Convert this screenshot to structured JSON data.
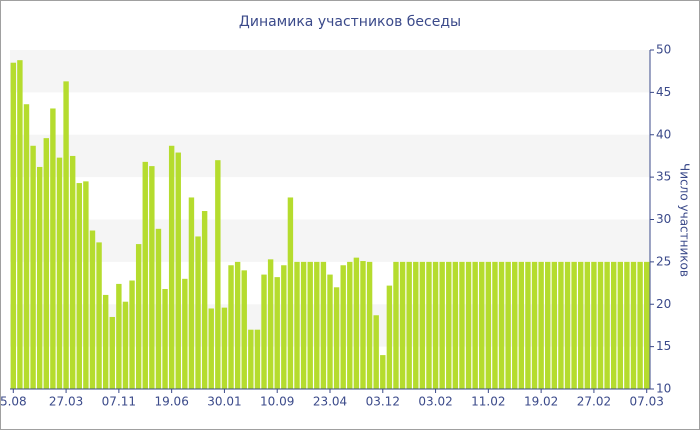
{
  "chart_data": {
    "type": "bar",
    "title": "Динамика участников беседы",
    "y_axis_label": "Число участников",
    "categories": [
      "5.08",
      null,
      null,
      null,
      null,
      null,
      null,
      null,
      "27.03",
      null,
      null,
      null,
      null,
      null,
      null,
      null,
      "07.11",
      null,
      null,
      null,
      null,
      null,
      null,
      null,
      "19.06",
      null,
      null,
      null,
      null,
      null,
      null,
      null,
      "30.01",
      null,
      null,
      null,
      null,
      null,
      null,
      null,
      "10.09",
      null,
      null,
      null,
      null,
      null,
      null,
      null,
      "23.04",
      null,
      null,
      null,
      null,
      null,
      null,
      null,
      "03.12",
      null,
      null,
      null,
      null,
      null,
      null,
      null,
      "03.02",
      null,
      null,
      null,
      null,
      null,
      null,
      null,
      "11.02",
      null,
      null,
      null,
      null,
      null,
      null,
      null,
      "19.02",
      null,
      null,
      null,
      null,
      null,
      null,
      null,
      "27.02",
      null,
      null,
      null,
      null,
      null,
      null,
      null,
      "07.03"
    ],
    "values": [
      48.5,
      48.8,
      43.6,
      38.7,
      36.2,
      39.6,
      43.1,
      37.3,
      46.3,
      37.5,
      34.3,
      34.5,
      28.7,
      27.3,
      21.1,
      18.5,
      22.4,
      20.3,
      22.8,
      27.1,
      36.8,
      36.3,
      28.9,
      21.8,
      38.7,
      37.9,
      23.0,
      32.6,
      28.0,
      31.0,
      19.5,
      37.0,
      19.6,
      24.6,
      25.0,
      24.0,
      17.0,
      17.0,
      23.5,
      25.3,
      23.2,
      24.6,
      32.6,
      25,
      25,
      25,
      25,
      25,
      23.5,
      22.0,
      24.6,
      25.0,
      25.5,
      25.1,
      25.0,
      18.7,
      14.0,
      22.2,
      25,
      25,
      25,
      25,
      25,
      25,
      25,
      25,
      25,
      25,
      25,
      25,
      25,
      25,
      25,
      25,
      25,
      25,
      25,
      25,
      25,
      25,
      25,
      25,
      25,
      25,
      25,
      25,
      25,
      25,
      25,
      25,
      25,
      25,
      25,
      25,
      25,
      25,
      25
    ],
    "color": "#b5dc2e",
    "ylim": [
      10,
      50
    ],
    "yticks": [
      10,
      15,
      20,
      25,
      30,
      35,
      40,
      45,
      50
    ],
    "grid": true
  }
}
